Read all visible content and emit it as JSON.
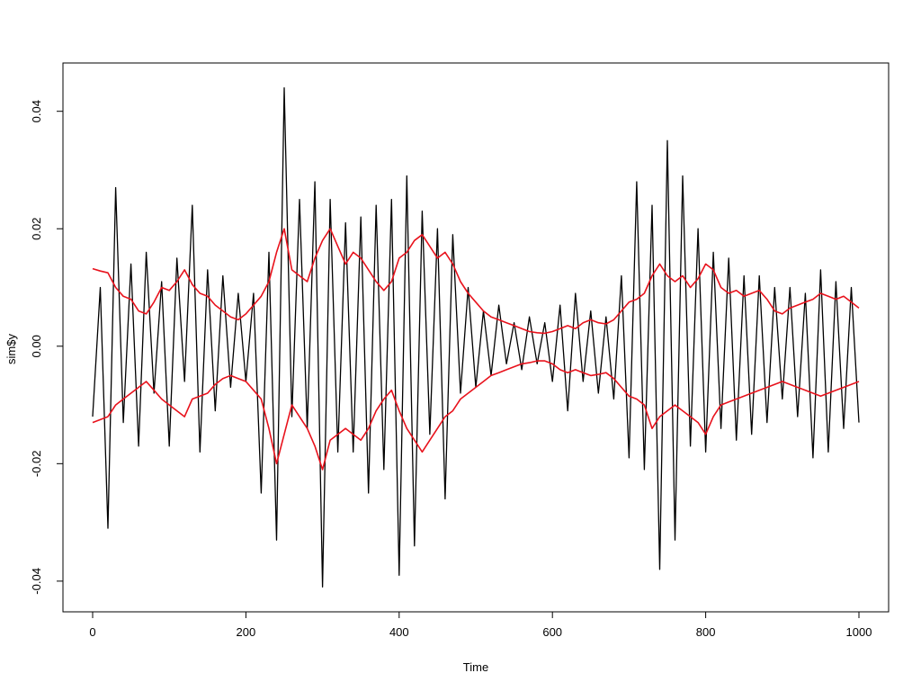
{
  "chart_data": {
    "type": "line",
    "xlabel": "Time",
    "ylabel": "sim$y",
    "xlim": [
      0,
      1000
    ],
    "ylim": [
      -0.044,
      0.047
    ],
    "x_ticks": [
      0,
      200,
      400,
      600,
      800,
      1000
    ],
    "x_tick_labels": [
      "0",
      "200",
      "400",
      "600",
      "800",
      "1000"
    ],
    "y_ticks": [
      -0.04,
      -0.02,
      0.0,
      0.02,
      0.04
    ],
    "y_tick_labels": [
      "-0.04",
      "-0.02",
      "0.00",
      "0.02",
      "0.04"
    ],
    "grid": false,
    "legend": "none",
    "series": [
      {
        "color": "#000000",
        "x": [
          0,
          10,
          20,
          30,
          40,
          50,
          60,
          70,
          80,
          90,
          100,
          110,
          120,
          130,
          140,
          150,
          160,
          170,
          180,
          190,
          200,
          210,
          220,
          230,
          240,
          250,
          260,
          270,
          280,
          290,
          300,
          310,
          320,
          330,
          340,
          350,
          360,
          370,
          380,
          390,
          400,
          410,
          420,
          430,
          440,
          450,
          460,
          470,
          480,
          490,
          500,
          510,
          520,
          530,
          540,
          550,
          560,
          570,
          580,
          590,
          600,
          610,
          620,
          630,
          640,
          650,
          660,
          670,
          680,
          690,
          700,
          710,
          720,
          730,
          740,
          750,
          760,
          770,
          780,
          790,
          800,
          810,
          820,
          830,
          840,
          850,
          860,
          870,
          880,
          890,
          900,
          910,
          920,
          930,
          940,
          950,
          960,
          970,
          980,
          990,
          1000
        ],
        "values": [
          -0.012,
          0.01,
          -0.031,
          0.027,
          -0.013,
          0.014,
          -0.017,
          0.016,
          -0.008,
          0.011,
          -0.017,
          0.015,
          -0.006,
          0.024,
          -0.018,
          0.013,
          -0.011,
          0.012,
          -0.007,
          0.009,
          -0.006,
          0.009,
          -0.025,
          0.016,
          -0.033,
          0.044,
          -0.012,
          0.025,
          -0.014,
          0.028,
          -0.041,
          0.025,
          -0.018,
          0.021,
          -0.018,
          0.022,
          -0.025,
          0.024,
          -0.021,
          0.025,
          -0.039,
          0.029,
          -0.034,
          0.023,
          -0.015,
          0.02,
          -0.026,
          0.019,
          -0.008,
          0.01,
          -0.007,
          0.006,
          -0.005,
          0.007,
          -0.003,
          0.004,
          -0.004,
          0.005,
          -0.003,
          0.004,
          -0.006,
          0.007,
          -0.011,
          0.009,
          -0.006,
          0.006,
          -0.008,
          0.005,
          -0.009,
          0.012,
          -0.019,
          0.028,
          -0.021,
          0.024,
          -0.038,
          0.035,
          -0.033,
          0.029,
          -0.017,
          0.02,
          -0.018,
          0.016,
          -0.014,
          0.015,
          -0.016,
          0.012,
          -0.015,
          0.012,
          -0.013,
          0.01,
          -0.009,
          0.01,
          -0.012,
          0.009,
          -0.019,
          0.013,
          -0.018,
          0.011,
          -0.014,
          0.01,
          -0.013
        ]
      },
      {
        "color": "#e8121c",
        "x": [
          0,
          10,
          20,
          30,
          40,
          50,
          60,
          70,
          80,
          90,
          100,
          110,
          120,
          130,
          140,
          150,
          160,
          170,
          180,
          190,
          200,
          210,
          220,
          230,
          240,
          250,
          260,
          270,
          280,
          290,
          300,
          310,
          320,
          330,
          340,
          350,
          360,
          370,
          380,
          390,
          400,
          410,
          420,
          430,
          440,
          450,
          460,
          470,
          480,
          490,
          500,
          510,
          520,
          530,
          540,
          550,
          560,
          570,
          580,
          590,
          600,
          610,
          620,
          630,
          640,
          650,
          660,
          670,
          680,
          690,
          700,
          710,
          720,
          730,
          740,
          750,
          760,
          770,
          780,
          790,
          800,
          810,
          820,
          830,
          840,
          850,
          860,
          870,
          880,
          890,
          900,
          910,
          920,
          930,
          940,
          950,
          960,
          970,
          980,
          990,
          1000
        ],
        "values": [
          0.0132,
          0.0128,
          0.0125,
          0.01,
          0.0085,
          0.008,
          0.006,
          0.0055,
          0.0075,
          0.01,
          0.0095,
          0.011,
          0.013,
          0.0105,
          0.009,
          0.0085,
          0.007,
          0.006,
          0.005,
          0.0045,
          0.0055,
          0.007,
          0.0085,
          0.011,
          0.016,
          0.02,
          0.013,
          0.012,
          0.011,
          0.015,
          0.018,
          0.02,
          0.017,
          0.014,
          0.016,
          0.015,
          0.013,
          0.011,
          0.0095,
          0.011,
          0.015,
          0.016,
          0.018,
          0.019,
          0.017,
          0.015,
          0.016,
          0.014,
          0.011,
          0.009,
          0.0075,
          0.006,
          0.005,
          0.0045,
          0.004,
          0.0035,
          0.003,
          0.0025,
          0.0023,
          0.0022,
          0.0025,
          0.003,
          0.0035,
          0.003,
          0.004,
          0.0045,
          0.004,
          0.0038,
          0.0045,
          0.006,
          0.0075,
          0.008,
          0.009,
          0.012,
          0.014,
          0.012,
          0.011,
          0.012,
          0.01,
          0.0115,
          0.014,
          0.013,
          0.01,
          0.009,
          0.0095,
          0.0085,
          0.009,
          0.0095,
          0.008,
          0.006,
          0.0055,
          0.0065,
          0.007,
          0.0075,
          0.008,
          0.009,
          0.0085,
          0.008,
          0.0085,
          0.0075,
          0.0065
        ]
      },
      {
        "color": "#e8121c",
        "x": [
          0,
          10,
          20,
          30,
          40,
          50,
          60,
          70,
          80,
          90,
          100,
          110,
          120,
          130,
          140,
          150,
          160,
          170,
          180,
          190,
          200,
          210,
          220,
          230,
          240,
          250,
          260,
          270,
          280,
          290,
          300,
          310,
          320,
          330,
          340,
          350,
          360,
          370,
          380,
          390,
          400,
          410,
          420,
          430,
          440,
          450,
          460,
          470,
          480,
          490,
          500,
          510,
          520,
          530,
          540,
          550,
          560,
          570,
          580,
          590,
          600,
          610,
          620,
          630,
          640,
          650,
          660,
          670,
          680,
          690,
          700,
          710,
          720,
          730,
          740,
          750,
          760,
          770,
          780,
          790,
          800,
          810,
          820,
          830,
          840,
          850,
          860,
          870,
          880,
          890,
          900,
          910,
          920,
          930,
          940,
          950,
          960,
          970,
          980,
          990,
          1000
        ],
        "values": [
          -0.013,
          -0.0125,
          -0.012,
          -0.01,
          -0.009,
          -0.008,
          -0.007,
          -0.006,
          -0.0075,
          -0.009,
          -0.01,
          -0.011,
          -0.012,
          -0.009,
          -0.0085,
          -0.008,
          -0.0065,
          -0.0055,
          -0.005,
          -0.0055,
          -0.006,
          -0.0075,
          -0.009,
          -0.014,
          -0.02,
          -0.015,
          -0.01,
          -0.012,
          -0.014,
          -0.017,
          -0.021,
          -0.016,
          -0.015,
          -0.014,
          -0.015,
          -0.016,
          -0.014,
          -0.011,
          -0.009,
          -0.0075,
          -0.011,
          -0.014,
          -0.016,
          -0.018,
          -0.016,
          -0.014,
          -0.012,
          -0.011,
          -0.009,
          -0.008,
          -0.007,
          -0.006,
          -0.005,
          -0.0045,
          -0.004,
          -0.0035,
          -0.003,
          -0.0028,
          -0.0025,
          -0.0025,
          -0.003,
          -0.004,
          -0.0045,
          -0.004,
          -0.0045,
          -0.005,
          -0.0048,
          -0.0045,
          -0.0055,
          -0.007,
          -0.0085,
          -0.009,
          -0.01,
          -0.014,
          -0.012,
          -0.011,
          -0.01,
          -0.011,
          -0.012,
          -0.013,
          -0.015,
          -0.012,
          -0.01,
          -0.0095,
          -0.009,
          -0.0085,
          -0.008,
          -0.0075,
          -0.007,
          -0.0065,
          -0.006,
          -0.0065,
          -0.007,
          -0.0075,
          -0.008,
          -0.0085,
          -0.008,
          -0.0075,
          -0.007,
          -0.0065,
          -0.006
        ]
      }
    ]
  }
}
